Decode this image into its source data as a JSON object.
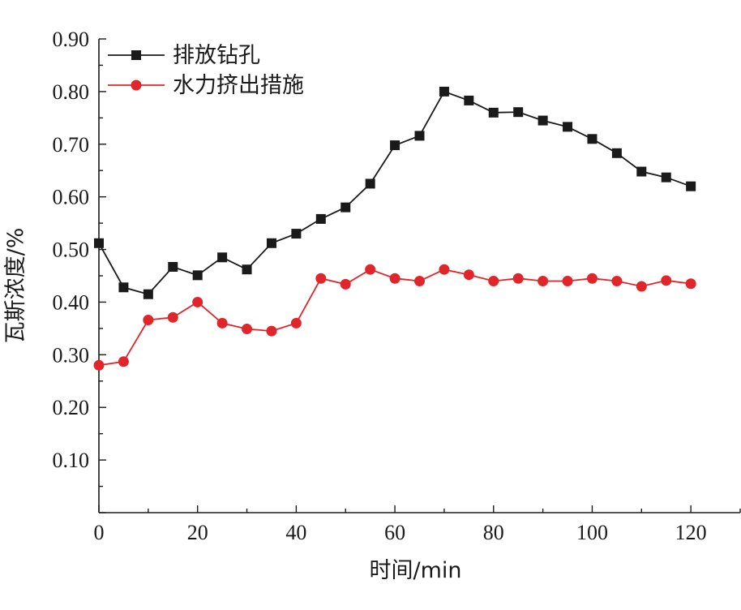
{
  "chart_data": {
    "type": "line",
    "xlabel": "时间/min",
    "ylabel": "瓦斯浓度/%",
    "xlim": [
      0,
      130
    ],
    "ylim": [
      0,
      0.9
    ],
    "x_ticks": [
      "0",
      "20",
      "40",
      "60",
      "80",
      "100",
      "120"
    ],
    "y_ticks": [
      "0.10",
      "0.20",
      "0.30",
      "0.40",
      "0.50",
      "0.60",
      "0.70",
      "0.80",
      "0.90"
    ],
    "legend_position": "top-left",
    "grid": false,
    "x": [
      0,
      5,
      10,
      15,
      20,
      25,
      30,
      35,
      40,
      45,
      50,
      55,
      60,
      65,
      70,
      75,
      80,
      85,
      90,
      95,
      100,
      105,
      110,
      115,
      120
    ],
    "series": [
      {
        "name": "排放钻孔",
        "color": "#1a1a1a",
        "marker": "square",
        "values": [
          0.512,
          0.428,
          0.415,
          0.467,
          0.451,
          0.485,
          0.462,
          0.512,
          0.53,
          0.558,
          0.58,
          0.625,
          0.698,
          0.716,
          0.8,
          0.783,
          0.76,
          0.761,
          0.745,
          0.733,
          0.71,
          0.683,
          0.648,
          0.637,
          0.62
        ]
      },
      {
        "name": "水力挤出措施",
        "color": "#e0262b",
        "marker": "circle",
        "values": [
          0.28,
          0.287,
          0.366,
          0.371,
          0.4,
          0.36,
          0.349,
          0.345,
          0.36,
          0.445,
          0.434,
          0.462,
          0.445,
          0.44,
          0.462,
          0.452,
          0.44,
          0.445,
          0.44,
          0.44,
          0.445,
          0.44,
          0.43,
          0.441,
          0.435
        ]
      }
    ]
  }
}
